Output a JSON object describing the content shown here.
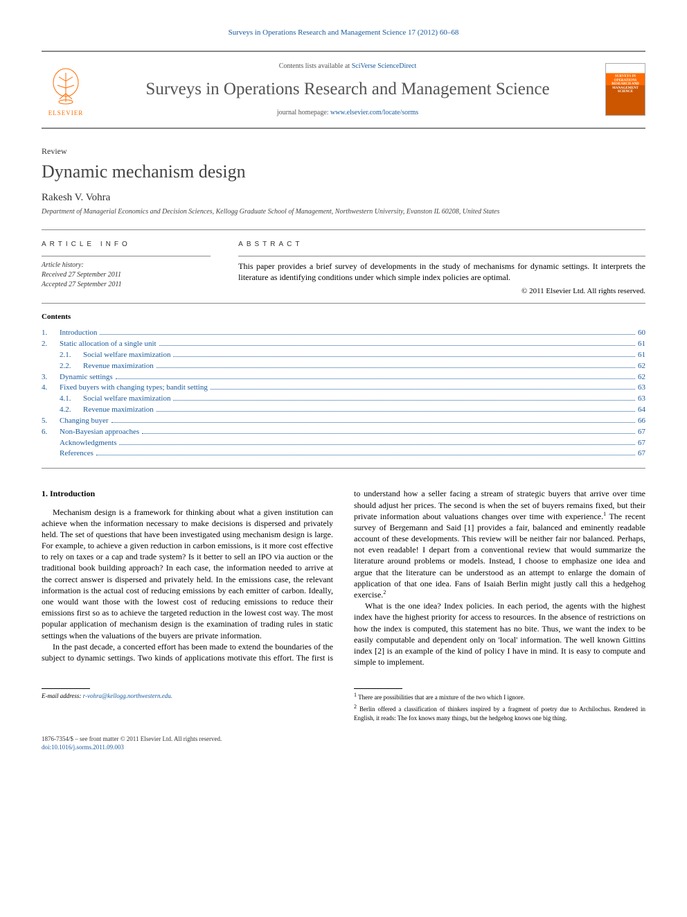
{
  "citation": "Surveys in Operations Research and Management Science 17 (2012) 60–68",
  "masthead": {
    "contents_prefix": "Contents lists available at ",
    "contents_link": "SciVerse ScienceDirect",
    "journal": "Surveys in Operations Research and Management Science",
    "homepage_prefix": "journal homepage: ",
    "homepage_link": "www.elsevier.com/locate/sorms",
    "publisher": "ELSEVIER",
    "cover_title": "SURVEYS IN OPERATIONS RESEARCH AND MANAGEMENT SCIENCE"
  },
  "article": {
    "type": "Review",
    "title": "Dynamic mechanism design",
    "author": "Rakesh V. Vohra",
    "affiliation": "Department of Managerial Economics and Decision Sciences, Kellogg Graduate School of Management, Northwestern University, Evanston IL 60208, United States"
  },
  "info": {
    "header": "ARTICLE INFO",
    "history_label": "Article history:",
    "received": "Received 27 September 2011",
    "accepted": "Accepted 27 September 2011"
  },
  "abstract": {
    "header": "ABSTRACT",
    "text": "This paper provides a brief survey of developments in the study of mechanisms for dynamic settings. It interprets the literature as identifying conditions under which simple index policies are optimal.",
    "copyright": "© 2011 Elsevier Ltd. All rights reserved."
  },
  "contents": {
    "label": "Contents",
    "items": [
      {
        "num": "1.",
        "title": "Introduction",
        "page": "60"
      },
      {
        "num": "2.",
        "title": "Static allocation of a single unit",
        "page": "61"
      },
      {
        "num": "2.1.",
        "title": "Social welfare maximization",
        "page": "61",
        "sub": true
      },
      {
        "num": "2.2.",
        "title": "Revenue maximization",
        "page": "62",
        "sub": true
      },
      {
        "num": "3.",
        "title": "Dynamic settings",
        "page": "62"
      },
      {
        "num": "4.",
        "title": "Fixed buyers with changing types; bandit setting",
        "page": "63"
      },
      {
        "num": "4.1.",
        "title": "Social welfare maximization",
        "page": "63",
        "sub": true
      },
      {
        "num": "4.2.",
        "title": "Revenue maximization",
        "page": "64",
        "sub": true
      },
      {
        "num": "5.",
        "title": "Changing buyer",
        "page": "66"
      },
      {
        "num": "6.",
        "title": "Non-Bayesian approaches",
        "page": "67"
      },
      {
        "num": "",
        "title": "Acknowledgments",
        "page": "67"
      },
      {
        "num": "",
        "title": "References",
        "page": "67"
      }
    ]
  },
  "section1": {
    "heading": "1. Introduction",
    "p1": "Mechanism design is a framework for thinking about what a given institution can achieve when the information necessary to make decisions is dispersed and privately held. The set of questions that have been investigated using mechanism design is large. For example, to achieve a given reduction in carbon emissions, is it more cost effective to rely on taxes or a cap and trade system? Is it better to sell an IPO via auction or the traditional book building approach? In each case, the information needed to arrive at the correct answer is dispersed and privately held. In the emissions case, the relevant information is the actual cost of reducing emissions by each emitter of carbon. Ideally, one would want those with the lowest cost of reducing emissions to reduce their emissions first so as to achieve the targeted reduction in the lowest cost way. The most popular application of mechanism design is the examination of trading rules in static settings when the valuations of the buyers are private information.",
    "p2": "In the past decade, a concerted effort has been made to extend the boundaries of the subject to dynamic settings. Two kinds of applications motivate this effort. The first is to understand how a seller facing a stream of strategic buyers that arrive over time should adjust her prices. The second is when the set of buyers remains fixed, but their private information about valuations changes over time with experience.",
    "p2_sup": "1",
    "p2b": " The recent survey of Bergemann and Said [1] provides a fair, balanced and eminently readable account of these developments. This review will be neither fair nor balanced. Perhaps, not even readable! I depart from a conventional review that would summarize the literature around problems or models. Instead, I choose to emphasize one idea and argue that the literature can be understood as an attempt to enlarge the domain of application of that one idea. Fans of Isaiah Berlin might justly call this a hedgehog exercise.",
    "p2b_sup": "2",
    "p3": "What is the one idea? Index policies. In each period, the agents with the highest index have the highest priority for access to resources. In the absence of restrictions on how the index is computed, this statement has no bite. Thus, we want the index to be easily computable and dependent only on 'local' information. The well known Gittins index [2] is an example of the kind of policy I have in mind. It is easy to compute and simple to implement."
  },
  "footnotes": {
    "email_label": "E-mail address:",
    "email": "r-vohra@kellogg.northwestern.edu.",
    "fn1": "There are possibilities that are a mixture of the two which I ignore.",
    "fn2": "Berlin offered a classification of thinkers inspired by a fragment of poetry due to Archilochus. Rendered in English, it reads: The fox knows many things, but the hedgehog knows one big thing."
  },
  "footer": {
    "issn": "1876-7354/$ – see front matter © 2011 Elsevier Ltd. All rights reserved.",
    "doi": "doi:10.1016/j.sorms.2011.09.003"
  },
  "colors": {
    "link": "#185a9d",
    "elsevier_orange": "#ff6b00",
    "text": "#000000",
    "rule": "#888888"
  }
}
